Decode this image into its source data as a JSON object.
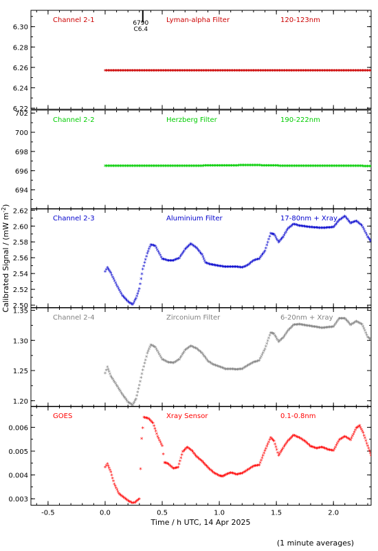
{
  "figure": {
    "x_label": "Time / h UTC, 14 Apr 2025",
    "y_label": "Calibrated Signal / (mW m",
    "y_label_sup": "-2",
    "y_label_end": ")",
    "footnote": "(1 minute averages)",
    "x_ticks": [
      "-0.5",
      "0.0",
      "0.5",
      "1.0",
      "1.5",
      "2.0"
    ]
  },
  "chart_data": [
    {
      "type": "scatter",
      "labels": [
        "Channel 2-1",
        "Lyman-alpha Filter",
        "120-123nm"
      ],
      "color": "#cc0000",
      "annotation": {
        "x": 0.33,
        "lines": [
          "6790",
          "C6.4"
        ]
      },
      "xlim": [
        -0.65,
        2.33
      ],
      "ylim": [
        6.219,
        6.316
      ],
      "y_ticks": [
        "6.22",
        "6.24",
        "6.26",
        "6.28",
        "6.30"
      ],
      "y_tick_values": [
        6.22,
        6.24,
        6.26,
        6.28,
        6.3
      ],
      "points": [
        [
          0.0,
          6.2565
        ],
        [
          0.5,
          6.2565
        ],
        [
          1.0,
          6.2565
        ],
        [
          1.5,
          6.2565
        ],
        [
          2.0,
          6.2565
        ],
        [
          2.33,
          6.2565
        ]
      ]
    },
    {
      "type": "scatter",
      "labels": [
        "Channel 2-2",
        "Herzberg Filter",
        "190-222nm"
      ],
      "color": "#00cc00",
      "xlim": [
        -0.65,
        2.33
      ],
      "ylim": [
        692.0,
        702.3
      ],
      "y_ticks": [
        "694",
        "696",
        "698",
        "700",
        "702"
      ],
      "y_tick_values": [
        694,
        696,
        698,
        700,
        702
      ],
      "points": [
        [
          0.0,
          696.45
        ],
        [
          0.5,
          696.45
        ],
        [
          0.9,
          696.47
        ],
        [
          1.3,
          696.52
        ],
        [
          1.6,
          696.45
        ],
        [
          2.0,
          696.44
        ],
        [
          2.33,
          696.43
        ]
      ]
    },
    {
      "type": "scatter",
      "labels": [
        "Channel 2-3",
        "Aluminium Filter",
        "17-80nm + Xray"
      ],
      "color": "#0000cc",
      "xlim": [
        -0.65,
        2.33
      ],
      "ylim": [
        2.497,
        2.622
      ],
      "y_ticks": [
        "2.50",
        "2.52",
        "2.54",
        "2.56",
        "2.58",
        "2.60",
        "2.62"
      ],
      "y_tick_values": [
        2.5,
        2.52,
        2.54,
        2.56,
        2.58,
        2.6,
        2.62
      ],
      "points": [
        [
          0.0,
          2.542
        ],
        [
          0.02,
          2.547
        ],
        [
          0.05,
          2.54
        ],
        [
          0.1,
          2.525
        ],
        [
          0.15,
          2.512
        ],
        [
          0.2,
          2.504
        ],
        [
          0.24,
          2.5
        ],
        [
          0.27,
          2.508
        ],
        [
          0.3,
          2.52
        ],
        [
          0.33,
          2.545
        ],
        [
          0.37,
          2.565
        ],
        [
          0.4,
          2.576
        ],
        [
          0.44,
          2.574
        ],
        [
          0.5,
          2.558
        ],
        [
          0.55,
          2.556
        ],
        [
          0.6,
          2.556
        ],
        [
          0.65,
          2.559
        ],
        [
          0.7,
          2.57
        ],
        [
          0.75,
          2.577
        ],
        [
          0.8,
          2.572
        ],
        [
          0.85,
          2.563
        ],
        [
          0.88,
          2.553
        ],
        [
          0.92,
          2.551
        ],
        [
          0.96,
          2.55
        ],
        [
          1.0,
          2.549
        ],
        [
          1.05,
          2.548
        ],
        [
          1.1,
          2.548
        ],
        [
          1.15,
          2.548
        ],
        [
          1.2,
          2.547
        ],
        [
          1.25,
          2.55
        ],
        [
          1.3,
          2.556
        ],
        [
          1.35,
          2.558
        ],
        [
          1.4,
          2.568
        ],
        [
          1.45,
          2.59
        ],
        [
          1.48,
          2.589
        ],
        [
          1.52,
          2.579
        ],
        [
          1.56,
          2.586
        ],
        [
          1.6,
          2.596
        ],
        [
          1.65,
          2.602
        ],
        [
          1.7,
          2.6
        ],
        [
          1.8,
          2.598
        ],
        [
          1.9,
          2.597
        ],
        [
          2.0,
          2.598
        ],
        [
          2.05,
          2.607
        ],
        [
          2.1,
          2.612
        ],
        [
          2.15,
          2.603
        ],
        [
          2.2,
          2.606
        ],
        [
          2.25,
          2.6
        ],
        [
          2.3,
          2.586
        ],
        [
          2.33,
          2.58
        ]
      ]
    },
    {
      "type": "scatter",
      "labels": [
        "Channel 2-4",
        "Zirconium Filter",
        "6-20nm + Xray"
      ],
      "color": "#808080",
      "xlim": [
        -0.65,
        2.33
      ],
      "ylim": [
        1.19,
        1.354
      ],
      "y_ticks": [
        "1.20",
        "1.25",
        "1.30",
        "1.35"
      ],
      "y_tick_values": [
        1.2,
        1.25,
        1.3,
        1.35
      ],
      "points": [
        [
          0.0,
          1.245
        ],
        [
          0.02,
          1.255
        ],
        [
          0.05,
          1.24
        ],
        [
          0.1,
          1.225
        ],
        [
          0.15,
          1.21
        ],
        [
          0.2,
          1.197
        ],
        [
          0.24,
          1.192
        ],
        [
          0.27,
          1.202
        ],
        [
          0.3,
          1.225
        ],
        [
          0.33,
          1.25
        ],
        [
          0.37,
          1.278
        ],
        [
          0.4,
          1.292
        ],
        [
          0.44,
          1.288
        ],
        [
          0.5,
          1.268
        ],
        [
          0.55,
          1.263
        ],
        [
          0.6,
          1.262
        ],
        [
          0.65,
          1.268
        ],
        [
          0.7,
          1.283
        ],
        [
          0.75,
          1.29
        ],
        [
          0.8,
          1.286
        ],
        [
          0.85,
          1.278
        ],
        [
          0.9,
          1.265
        ],
        [
          0.95,
          1.259
        ],
        [
          1.0,
          1.256
        ],
        [
          1.05,
          1.252
        ],
        [
          1.1,
          1.252
        ],
        [
          1.15,
          1.251
        ],
        [
          1.2,
          1.252
        ],
        [
          1.25,
          1.258
        ],
        [
          1.3,
          1.263
        ],
        [
          1.35,
          1.266
        ],
        [
          1.4,
          1.285
        ],
        [
          1.45,
          1.312
        ],
        [
          1.48,
          1.31
        ],
        [
          1.52,
          1.297
        ],
        [
          1.56,
          1.304
        ],
        [
          1.6,
          1.315
        ],
        [
          1.65,
          1.325
        ],
        [
          1.7,
          1.326
        ],
        [
          1.8,
          1.323
        ],
        [
          1.9,
          1.32
        ],
        [
          2.0,
          1.322
        ],
        [
          2.05,
          1.336
        ],
        [
          2.1,
          1.336
        ],
        [
          2.15,
          1.325
        ],
        [
          2.2,
          1.331
        ],
        [
          2.25,
          1.326
        ],
        [
          2.3,
          1.305
        ],
        [
          2.33,
          1.3
        ]
      ]
    },
    {
      "type": "scatter",
      "labels": [
        "GOES",
        "Xray Sensor",
        "0.1-0.8nm"
      ],
      "color": "#ff0000",
      "xlim": [
        -0.65,
        2.33
      ],
      "ylim": [
        0.00273,
        0.00688
      ],
      "y_ticks": [
        "0.003",
        "0.004",
        "0.005",
        "0.006"
      ],
      "y_tick_values": [
        0.003,
        0.004,
        0.005,
        0.006
      ],
      "points": [
        [
          0.0,
          0.0043
        ],
        [
          0.02,
          0.00445
        ],
        [
          0.05,
          0.0041
        ],
        [
          0.08,
          0.0036
        ],
        [
          0.12,
          0.0032
        ],
        [
          0.16,
          0.00305
        ],
        [
          0.2,
          0.0029
        ],
        [
          0.24,
          0.0028
        ],
        [
          0.26,
          0.00282
        ],
        [
          0.3,
          0.00298
        ],
        [
          0.32,
          0.0055
        ],
        [
          0.34,
          0.0064
        ],
        [
          0.38,
          0.00635
        ],
        [
          0.42,
          0.00615
        ],
        [
          0.46,
          0.0056
        ],
        [
          0.5,
          0.0052
        ],
        [
          0.52,
          0.0045
        ],
        [
          0.55,
          0.00445
        ],
        [
          0.6,
          0.00425
        ],
        [
          0.64,
          0.0043
        ],
        [
          0.68,
          0.00495
        ],
        [
          0.72,
          0.00515
        ],
        [
          0.76,
          0.005
        ],
        [
          0.8,
          0.00475
        ],
        [
          0.84,
          0.0046
        ],
        [
          0.88,
          0.0044
        ],
        [
          0.92,
          0.0042
        ],
        [
          0.96,
          0.00405
        ],
        [
          1.0,
          0.00395
        ],
        [
          1.03,
          0.00392
        ],
        [
          1.06,
          0.004
        ],
        [
          1.1,
          0.00408
        ],
        [
          1.15,
          0.004
        ],
        [
          1.2,
          0.00405
        ],
        [
          1.25,
          0.0042
        ],
        [
          1.3,
          0.00435
        ],
        [
          1.35,
          0.0044
        ],
        [
          1.4,
          0.005
        ],
        [
          1.45,
          0.00555
        ],
        [
          1.48,
          0.0054
        ],
        [
          1.52,
          0.0048
        ],
        [
          1.55,
          0.00505
        ],
        [
          1.6,
          0.0054
        ],
        [
          1.65,
          0.00565
        ],
        [
          1.7,
          0.00555
        ],
        [
          1.75,
          0.0054
        ],
        [
          1.8,
          0.00518
        ],
        [
          1.85,
          0.0051
        ],
        [
          1.9,
          0.00515
        ],
        [
          1.95,
          0.00505
        ],
        [
          2.0,
          0.005
        ],
        [
          2.05,
          0.00545
        ],
        [
          2.1,
          0.0056
        ],
        [
          2.15,
          0.00545
        ],
        [
          2.2,
          0.00595
        ],
        [
          2.23,
          0.00605
        ],
        [
          2.26,
          0.00575
        ],
        [
          2.3,
          0.0052
        ],
        [
          2.33,
          0.0048
        ]
      ]
    }
  ]
}
